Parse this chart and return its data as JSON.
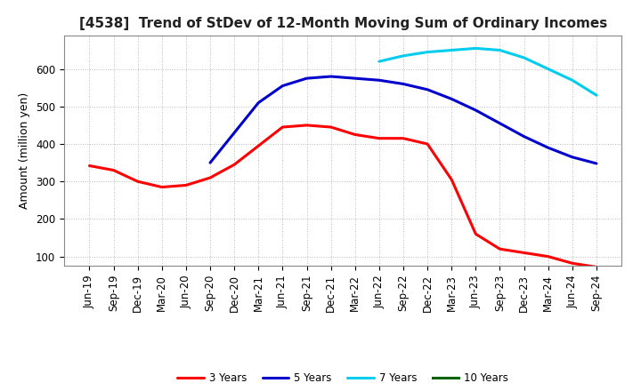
{
  "title": "[4538]  Trend of StDev of 12-Month Moving Sum of Ordinary Incomes",
  "ylabel": "Amount (million yen)",
  "line_colors": {
    "3 Years": "#ff0000",
    "5 Years": "#0000cd",
    "7 Years": "#00ccee",
    "10 Years": "#006400"
  },
  "x_labels": [
    "Jun-19",
    "Sep-19",
    "Dec-19",
    "Mar-20",
    "Jun-20",
    "Sep-20",
    "Dec-20",
    "Mar-21",
    "Jun-21",
    "Sep-21",
    "Dec-21",
    "Mar-22",
    "Jun-22",
    "Sep-22",
    "Dec-22",
    "Mar-23",
    "Jun-23",
    "Sep-23",
    "Dec-23",
    "Mar-24",
    "Jun-24",
    "Sep-24"
  ],
  "3_years": [
    342,
    330,
    300,
    285,
    290,
    310,
    345,
    395,
    445,
    450,
    445,
    425,
    415,
    415,
    400,
    305,
    160,
    120,
    110,
    100,
    82,
    72
  ],
  "5_years": [
    null,
    null,
    null,
    null,
    null,
    350,
    430,
    510,
    555,
    575,
    580,
    575,
    570,
    560,
    545,
    520,
    490,
    455,
    420,
    390,
    365,
    348
  ],
  "7_years": [
    null,
    null,
    null,
    null,
    null,
    null,
    null,
    null,
    null,
    null,
    null,
    null,
    620,
    635,
    645,
    650,
    655,
    650,
    630,
    600,
    570,
    530
  ],
  "10_years": [
    null,
    null,
    null,
    null,
    null,
    null,
    null,
    null,
    null,
    null,
    null,
    null,
    null,
    null,
    null,
    null,
    null,
    null,
    null,
    null,
    null,
    null
  ],
  "ylim": [
    75,
    690
  ],
  "yticks": [
    100,
    200,
    300,
    400,
    500,
    600
  ],
  "background_color": "#ffffff",
  "grid_color": "#aaaaaa",
  "title_fontsize": 11,
  "axis_fontsize": 9,
  "tick_fontsize": 8.5
}
